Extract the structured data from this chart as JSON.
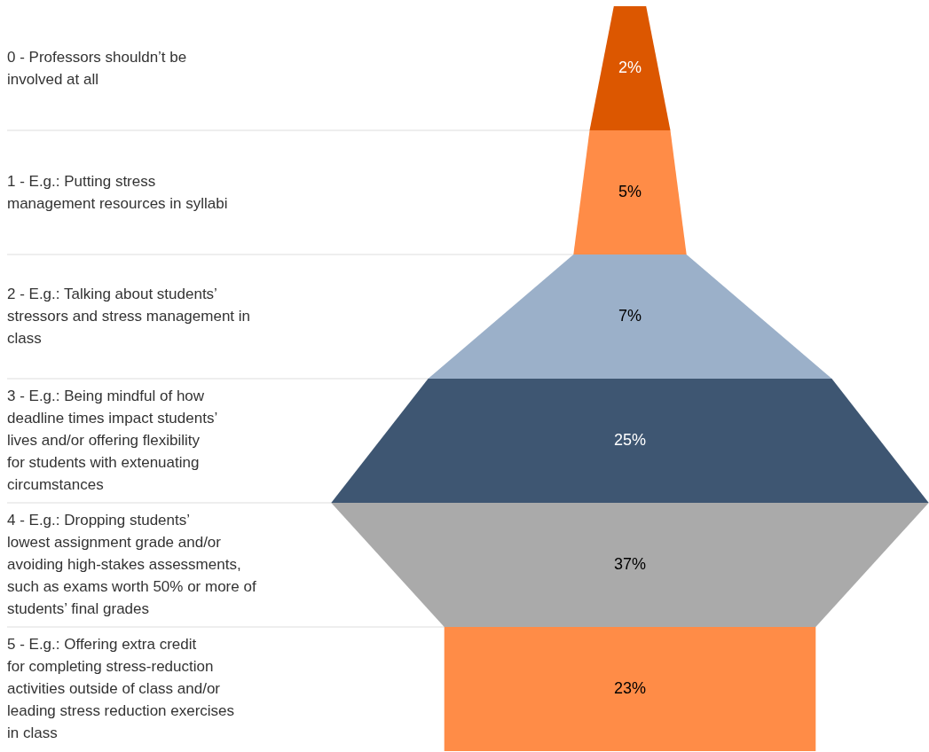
{
  "chart_data": {
    "type": "other",
    "categories": [
      "0 - Professors shouldn’t be involved at all",
      "1 - E.g.: Putting stress management resources in syllabi",
      "2 - E.g.: Talking about students’ stressors and stress management in class",
      "3 - E.g.: Being mindful of how deadline times impact students’ lives and/or offering flexibility for students with extenuating circumstances",
      "4 - E.g.: Dropping students’ lowest assignment grade and/or avoiding high-stakes assessments, such as exams worth 50% or more of students’ final grades",
      "5 - E.g.: Offering extra credit for completing stress-reduction activities outside of class and/or leading stress reduction exercises in class"
    ],
    "values": [
      2,
      5,
      7,
      25,
      37,
      23
    ],
    "value_labels": [
      "2%",
      "5%",
      "7%",
      "25%",
      "37%",
      "23%"
    ],
    "colors": [
      "#dc5700",
      "#ff8c47",
      "#9bb0c9",
      "#3e5672",
      "#aaaaaa",
      "#ff8c47"
    ]
  }
}
